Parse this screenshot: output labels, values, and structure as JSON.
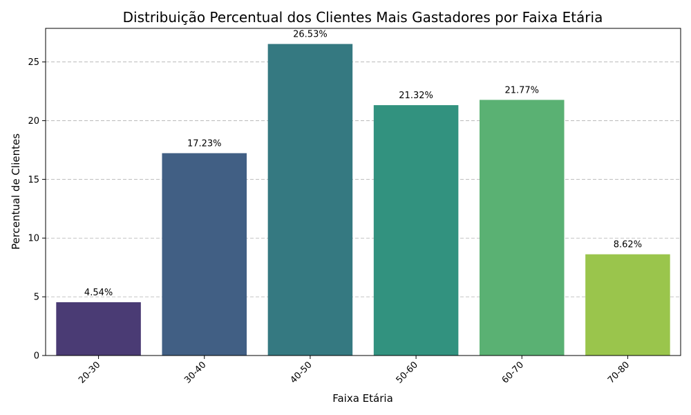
{
  "chart_data": {
    "type": "bar",
    "title": "Distribuição Percentual dos Clientes Mais Gastadores por Faixa Etária",
    "xlabel": "Faixa Etária",
    "ylabel": "Percentual de Clientes",
    "categories": [
      "20-30",
      "30-40",
      "40-50",
      "50-60",
      "60-70",
      "70-80"
    ],
    "values": [
      4.54,
      17.23,
      26.53,
      21.32,
      21.77,
      8.62
    ],
    "data_labels": [
      "4.54%",
      "17.23%",
      "26.53%",
      "21.32%",
      "21.77%",
      "8.62%"
    ],
    "colors": [
      "#4a3b74",
      "#415f84",
      "#357981",
      "#32927f",
      "#5ab173",
      "#9ac54c"
    ],
    "yticks": [
      0,
      5,
      10,
      15,
      20,
      25
    ],
    "ylim": [
      0,
      27.86
    ],
    "grid": "y-dashed",
    "xtick_rotation": "45-degrees"
  }
}
